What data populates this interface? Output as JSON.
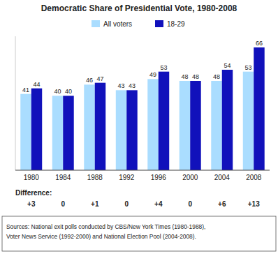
{
  "chart_data": {
    "type": "bar",
    "title": "Democratic Share of Presidential Vote, 1980-2008",
    "categories": [
      "1980",
      "1984",
      "1988",
      "1992",
      "1996",
      "2000",
      "2004",
      "2008"
    ],
    "series": [
      {
        "name": "All voters",
        "color": "#aaddff",
        "values": [
          41,
          40,
          46,
          43,
          49,
          48,
          48,
          53
        ]
      },
      {
        "name": "18-29",
        "color": "#1111bb",
        "values": [
          44,
          40,
          47,
          43,
          53,
          48,
          54,
          66
        ]
      }
    ],
    "ylim": [
      0,
      72
    ],
    "grid": false,
    "legend": "top",
    "data_labels": true,
    "tick_labels": "x",
    "difference_label": "Difference:",
    "differences": [
      "+3",
      "0",
      "+1",
      "0",
      "+4",
      "0",
      "+6",
      "+13"
    ],
    "source": [
      "Sources: National exit polls conducted by CBS/New York Times (1980-1988),",
      "Voter News Service (1992-2000) and National Election Pool (2004-2008)."
    ]
  }
}
